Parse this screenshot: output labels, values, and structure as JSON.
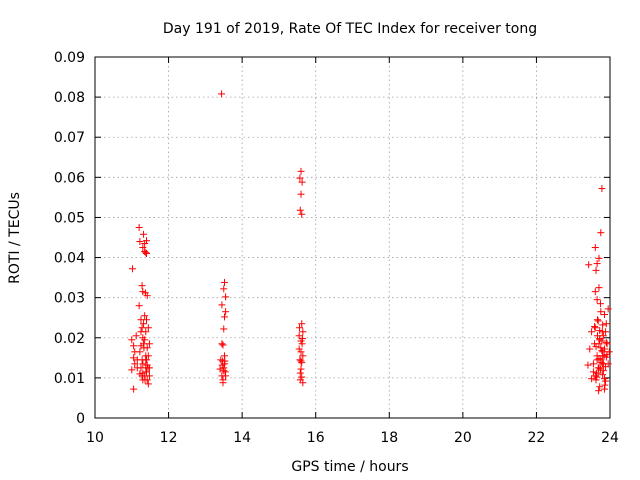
{
  "chart_data": {
    "type": "scatter",
    "title": "Day 191 of 2019, Rate Of TEC Index for receiver tong",
    "xlabel": "GPS time / hours",
    "ylabel": "ROTI / TECUs",
    "xlim": [
      10,
      24
    ],
    "ylim": [
      0,
      0.09
    ],
    "xticks": [
      10,
      12,
      14,
      16,
      18,
      20,
      22,
      24
    ],
    "xtick_labels": [
      "10",
      "12",
      "14",
      "16",
      "18",
      "20",
      "22",
      "24"
    ],
    "yticks": [
      0,
      0.01,
      0.02,
      0.03,
      0.04,
      0.05,
      0.06,
      0.07,
      0.08,
      0.09
    ],
    "ytick_labels": [
      "0",
      "0.01",
      "0.02",
      "0.03",
      "0.04",
      "0.05",
      "0.06",
      "0.07",
      "0.08",
      "0.09"
    ],
    "grid": true,
    "marker": "+",
    "color": "#ff0000",
    "series": [
      {
        "name": "ROTI",
        "x": [
          11.0,
          11.0,
          11.02,
          11.05,
          11.05,
          11.05,
          11.08,
          11.08,
          11.12,
          11.15,
          11.15,
          11.2,
          11.2,
          11.22,
          11.22,
          11.25,
          11.25,
          11.25,
          11.28,
          11.28,
          11.28,
          11.3,
          11.3,
          11.3,
          11.3,
          11.32,
          11.32,
          11.35,
          11.35,
          11.35,
          11.35,
          11.37,
          11.38,
          11.38,
          11.38,
          11.4,
          11.4,
          11.4,
          11.4,
          11.42,
          11.42,
          11.42,
          11.45,
          11.45,
          11.45,
          11.48,
          11.48,
          11.48,
          11.22,
          11.3,
          11.35,
          11.4,
          11.28,
          11.33,
          11.38,
          11.42,
          11.25,
          11.3,
          11.36,
          11.44,
          11.32,
          11.38,
          13.4,
          13.42,
          13.44,
          13.45,
          13.45,
          13.47,
          13.48,
          13.48,
          13.5,
          13.5,
          13.5,
          13.52,
          13.52,
          13.52,
          13.53,
          13.55,
          13.55,
          13.55,
          13.45,
          13.5,
          13.48,
          13.52,
          13.46,
          13.54,
          15.55,
          15.55,
          15.57,
          15.57,
          15.58,
          15.58,
          15.6,
          15.6,
          15.6,
          15.6,
          15.62,
          15.62,
          15.62,
          15.63,
          15.63,
          15.65,
          15.65,
          15.65,
          15.6,
          15.62,
          15.58,
          15.64,
          15.56,
          15.6,
          23.4,
          23.42,
          23.45,
          23.5,
          23.5,
          23.55,
          23.55,
          23.58,
          23.6,
          23.6,
          23.62,
          23.62,
          23.65,
          23.65,
          23.65,
          23.68,
          23.68,
          23.7,
          23.7,
          23.7,
          23.72,
          23.72,
          23.75,
          23.75,
          23.75,
          23.78,
          23.78,
          23.8,
          23.8,
          23.8,
          23.82,
          23.82,
          23.85,
          23.85,
          23.85,
          23.88,
          23.88,
          23.9,
          23.9,
          23.92,
          23.95,
          23.95,
          23.98,
          23.6,
          23.65,
          23.7,
          23.75,
          23.8,
          23.72,
          23.68,
          23.76,
          23.62,
          23.66,
          23.74,
          23.84,
          23.86,
          23.9,
          23.58,
          23.64,
          23.7,
          23.78,
          23.82,
          23.88,
          23.6,
          23.66,
          23.72,
          23.8,
          23.85,
          23.92,
          23.63,
          23.69,
          23.74,
          23.79
        ],
        "y": [
          0.012,
          0.0195,
          0.0372,
          0.0072,
          0.015,
          0.018,
          0.0165,
          0.0135,
          0.0205,
          0.0145,
          0.0125,
          0.0475,
          0.028,
          0.044,
          0.011,
          0.0125,
          0.0245,
          0.018,
          0.033,
          0.0225,
          0.0145,
          0.0425,
          0.0315,
          0.02,
          0.0095,
          0.0458,
          0.0185,
          0.0435,
          0.0415,
          0.0255,
          0.0105,
          0.0312,
          0.0412,
          0.0215,
          0.0125,
          0.0442,
          0.041,
          0.0245,
          0.0115,
          0.0305,
          0.0175,
          0.0095,
          0.0225,
          0.0155,
          0.0085,
          0.0185,
          0.0125,
          0.0105,
          0.0165,
          0.0135,
          0.0195,
          0.0145,
          0.0105,
          0.0175,
          0.0155,
          0.0132,
          0.0215,
          0.0112,
          0.0095,
          0.0125,
          0.0235,
          0.0145,
          0.0122,
          0.0145,
          0.0808,
          0.0105,
          0.0282,
          0.0142,
          0.0088,
          0.0182,
          0.0322,
          0.0222,
          0.0118,
          0.0338,
          0.0252,
          0.0135,
          0.0142,
          0.0302,
          0.0265,
          0.0105,
          0.0185,
          0.0125,
          0.0095,
          0.0155,
          0.0132,
          0.0115,
          0.0205,
          0.0172,
          0.0598,
          0.0145,
          0.0518,
          0.0095,
          0.0615,
          0.0558,
          0.0192,
          0.0122,
          0.0508,
          0.0235,
          0.0102,
          0.0588,
          0.0185,
          0.0215,
          0.0155,
          0.0088,
          0.0165,
          0.0138,
          0.0112,
          0.0198,
          0.0225,
          0.0142,
          0.0132,
          0.0382,
          0.0172,
          0.0098,
          0.0215,
          0.0115,
          0.0135,
          0.0185,
          0.0425,
          0.0225,
          0.0368,
          0.0095,
          0.0385,
          0.0295,
          0.0155,
          0.0242,
          0.0125,
          0.0398,
          0.0325,
          0.0185,
          0.0218,
          0.0078,
          0.0462,
          0.0265,
          0.0145,
          0.0572,
          0.0192,
          0.0232,
          0.0165,
          0.0108,
          0.0205,
          0.0135,
          0.0258,
          0.0172,
          0.0098,
          0.0215,
          0.0128,
          0.0235,
          0.0152,
          0.0185,
          0.0272,
          0.0135,
          0.0165,
          0.0105,
          0.0145,
          0.0125,
          0.0175,
          0.0155,
          0.0195,
          0.0112,
          0.0138,
          0.0178,
          0.0205,
          0.0122,
          0.0155,
          0.0082,
          0.0188,
          0.0228,
          0.0102,
          0.0148,
          0.0168,
          0.0118,
          0.0092,
          0.0315,
          0.0245,
          0.0198,
          0.0135,
          0.0072,
          0.0158,
          0.0112,
          0.0068,
          0.0285,
          0.0215
        ]
      }
    ]
  }
}
